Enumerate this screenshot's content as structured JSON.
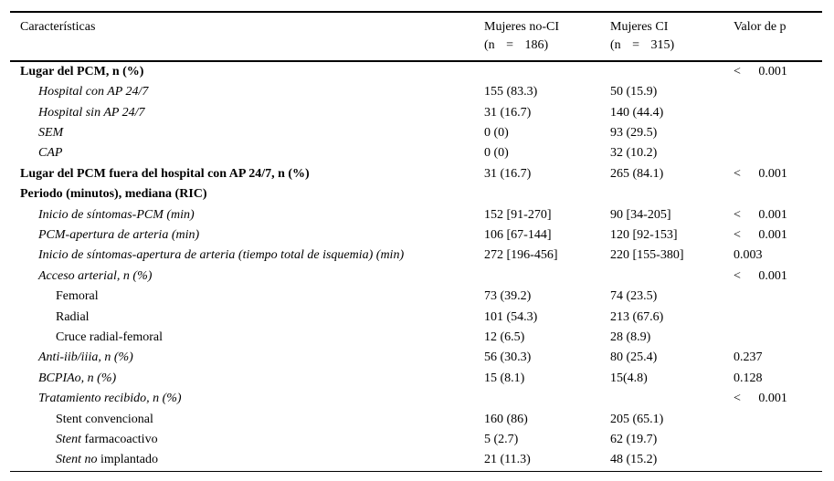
{
  "table": {
    "header": {
      "characteristics": "Características",
      "col_no_ci": {
        "line1": "Mujeres no-CI",
        "line2": "(n = 186)"
      },
      "col_ci": {
        "line1": "Mujeres CI",
        "line2": "(n = 315)"
      },
      "p_label": "Valor de p"
    },
    "rows": [
      {
        "indent": 0,
        "bold": true,
        "parts": [
          {
            "t": "Lugar del PCM, n (%)",
            "i": false
          }
        ],
        "no_ci": "",
        "ci": "",
        "p": "< 0.001"
      },
      {
        "indent": 1,
        "bold": false,
        "parts": [
          {
            "t": "Hospital con AP 24/7",
            "i": true
          }
        ],
        "no_ci": "155 (83.3)",
        "ci": "50 (15.9)",
        "p": ""
      },
      {
        "indent": 1,
        "bold": false,
        "parts": [
          {
            "t": "Hospital sin AP 24/7",
            "i": true
          }
        ],
        "no_ci": "31 (16.7)",
        "ci": "140 (44.4)",
        "p": ""
      },
      {
        "indent": 1,
        "bold": false,
        "parts": [
          {
            "t": "SEM",
            "i": true
          }
        ],
        "no_ci": "0 (0)",
        "ci": "93 (29.5)",
        "p": ""
      },
      {
        "indent": 1,
        "bold": false,
        "parts": [
          {
            "t": "CAP",
            "i": true
          }
        ],
        "no_ci": "0 (0)",
        "ci": "32 (10.2)",
        "p": ""
      },
      {
        "indent": 0,
        "bold": true,
        "parts": [
          {
            "t": "Lugar del PCM fuera del hospital con AP 24/7, n (%)",
            "i": false
          }
        ],
        "no_ci": "31 (16.7)",
        "ci": "265 (84.1)",
        "p": "< 0.001"
      },
      {
        "indent": 0,
        "bold": true,
        "parts": [
          {
            "t": "Periodo (minutos), mediana (RIC)",
            "i": false
          }
        ],
        "no_ci": "",
        "ci": "",
        "p": ""
      },
      {
        "indent": 1,
        "bold": false,
        "parts": [
          {
            "t": "Inicio de síntomas-PCM (min)",
            "i": true
          }
        ],
        "no_ci": "152 [91-270]",
        "ci": "90 [34-205]",
        "p": "< 0.001"
      },
      {
        "indent": 1,
        "bold": false,
        "parts": [
          {
            "t": "PCM-apertura de arteria (min)",
            "i": true
          }
        ],
        "no_ci": "106 [67-144]",
        "ci": "120 [92-153]",
        "p": "< 0.001"
      },
      {
        "indent": 1,
        "bold": false,
        "parts": [
          {
            "t": "Inicio de síntomas-apertura de arteria (tiempo total de isquemia) (min)",
            "i": true
          }
        ],
        "no_ci": "272 [196-456]",
        "ci": "220 [155-380]",
        "p": "0.003"
      },
      {
        "indent": 1,
        "bold": false,
        "parts": [
          {
            "t": "Acceso arterial, n (%)",
            "i": true
          }
        ],
        "no_ci": "",
        "ci": "",
        "p": "< 0.001"
      },
      {
        "indent": 2,
        "bold": false,
        "parts": [
          {
            "t": "Femoral",
            "i": false
          }
        ],
        "no_ci": "73 (39.2)",
        "ci": "74 (23.5)",
        "p": ""
      },
      {
        "indent": 2,
        "bold": false,
        "parts": [
          {
            "t": "Radial",
            "i": false
          }
        ],
        "no_ci": "101 (54.3)",
        "ci": "213 (67.6)",
        "p": ""
      },
      {
        "indent": 2,
        "bold": false,
        "parts": [
          {
            "t": "Cruce radial-femoral",
            "i": false
          }
        ],
        "no_ci": "12 (6.5)",
        "ci": "28 (8.9)",
        "p": ""
      },
      {
        "indent": 1,
        "bold": false,
        "parts": [
          {
            "t": "Anti-iib/iiia, n (%)",
            "i": true
          }
        ],
        "no_ci": "56 (30.3)",
        "ci": "80 (25.4)",
        "p": "0.237"
      },
      {
        "indent": 1,
        "bold": false,
        "parts": [
          {
            "t": "BCPIAo, n (%)",
            "i": true
          }
        ],
        "no_ci": "15 (8.1)",
        "ci": "15(4.8)",
        "p": "0.128"
      },
      {
        "indent": 1,
        "bold": false,
        "parts": [
          {
            "t": "Tratamiento recibido, n (%)",
            "i": true
          }
        ],
        "no_ci": "",
        "ci": "",
        "p": "< 0.001"
      },
      {
        "indent": 2,
        "bold": false,
        "parts": [
          {
            "t": "Stent convencional",
            "i": false
          }
        ],
        "no_ci": "160 (86)",
        "ci": "205 (65.1)",
        "p": ""
      },
      {
        "indent": 2,
        "bold": false,
        "parts": [
          {
            "t": "Stent",
            "i": true
          },
          {
            "t": " farmacoactivo",
            "i": false
          }
        ],
        "no_ci": "5 (2.7)",
        "ci": "62 (19.7)",
        "p": ""
      },
      {
        "indent": 2,
        "bold": false,
        "parts": [
          {
            "t": "Stent no",
            "i": true
          },
          {
            "t": " implantado",
            "i": false
          }
        ],
        "no_ci": "21 (11.3)",
        "ci": "48 (15.2)",
        "p": ""
      }
    ]
  }
}
